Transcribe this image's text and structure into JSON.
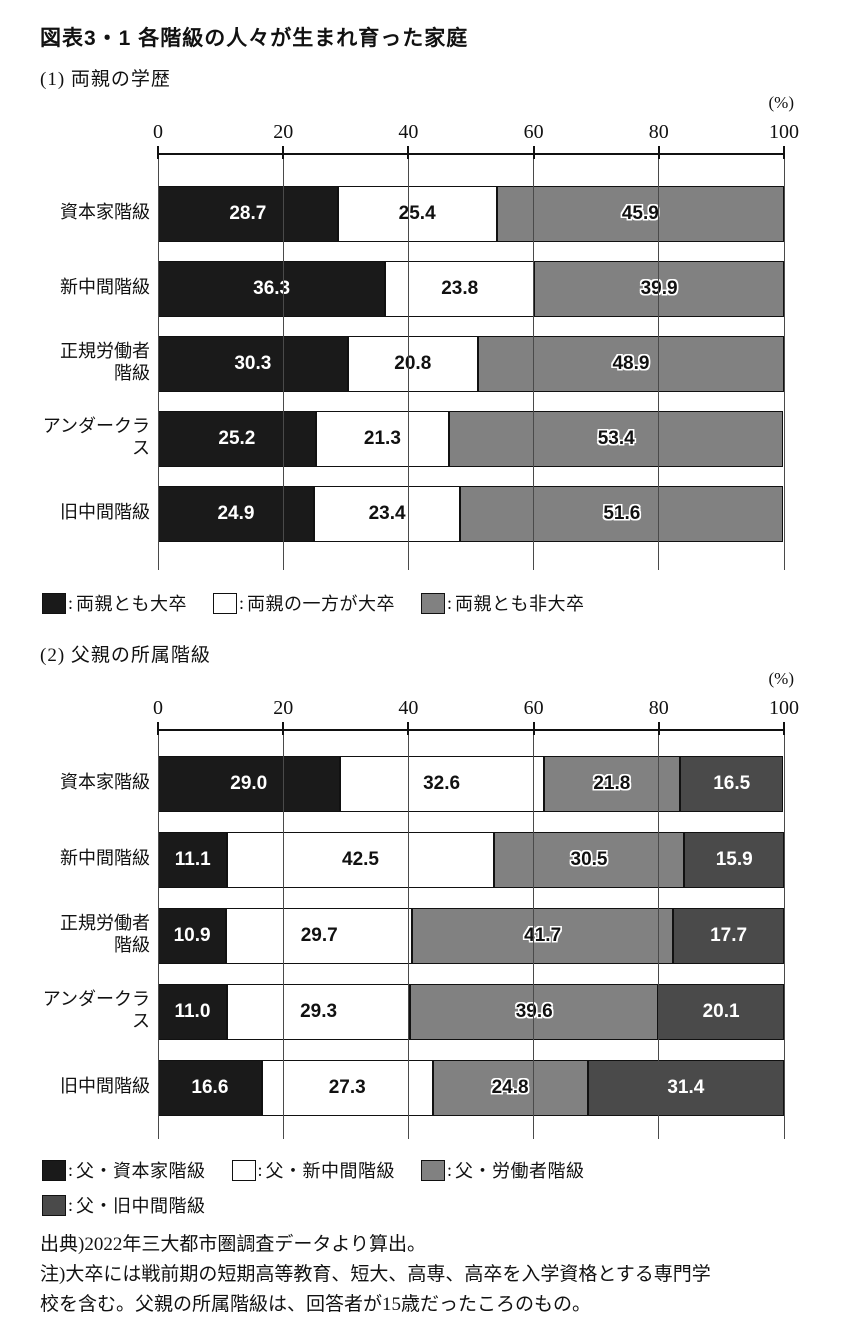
{
  "page": {
    "title": "図表3・1 各階級の人々が生まれ育った家庭",
    "source_note": "出典)2022年三大都市圏調査データより算出。",
    "note_line1": "注)大卒には戦前期の短期高等教育、短大、高専、高卒を入学資格とする専門学",
    "note_line2": "校を含む。父親の所属階級は、回答者が15歳だったころのもの。"
  },
  "ui": {
    "legend_colon": ":"
  },
  "colors": {
    "black_series": "#1a1a1a",
    "white_series": "#ffffff",
    "gray_series": "#818181",
    "dark_gray_series": "#4a4a4a",
    "axis": "#111111",
    "gridline": "#4a4a4a"
  },
  "chart_data": [
    {
      "type": "bar",
      "orientation": "horizontal",
      "stacked": true,
      "title": "(1) 両親の学歴",
      "unit_label": "(%)",
      "xlim": [
        0,
        100
      ],
      "axis_ticks": [
        "0",
        "20",
        "40",
        "60",
        "80",
        "100"
      ],
      "grid": true,
      "legend_position": "bottom",
      "categories": [
        "資本家階級",
        "新中間階級",
        "正規労働者\n階級",
        "アンダークラス",
        "旧中間階級"
      ],
      "series": [
        {
          "name": "両親とも大卒",
          "color": "#1a1a1a",
          "value_style": "white",
          "values": [
            "28.7",
            "36.3",
            "30.3",
            "25.2",
            "24.9"
          ]
        },
        {
          "name": "両親の一方が大卒",
          "color": "#ffffff",
          "value_style": "black",
          "values": [
            "25.4",
            "23.8",
            "20.8",
            "21.3",
            "23.4"
          ]
        },
        {
          "name": "両親とも非大卒",
          "color": "#818181",
          "value_style": "outline",
          "values": [
            "45.9",
            "39.9",
            "48.9",
            "53.4",
            "51.6"
          ]
        }
      ]
    },
    {
      "type": "bar",
      "orientation": "horizontal",
      "stacked": true,
      "title": "(2) 父親の所属階級",
      "unit_label": "(%)",
      "xlim": [
        0,
        100
      ],
      "axis_ticks": [
        "0",
        "20",
        "40",
        "60",
        "80",
        "100"
      ],
      "grid": true,
      "legend_position": "bottom",
      "categories": [
        "資本家階級",
        "新中間階級",
        "正規労働者\n階級",
        "アンダークラス",
        "旧中間階級"
      ],
      "series": [
        {
          "name": "父・資本家階級",
          "color": "#1a1a1a",
          "value_style": "white",
          "values": [
            "29.0",
            "11.1",
            "10.9",
            "11.0",
            "16.6"
          ]
        },
        {
          "name": "父・新中間階級",
          "color": "#ffffff",
          "value_style": "black",
          "values": [
            "32.6",
            "42.5",
            "29.7",
            "29.3",
            "27.3"
          ]
        },
        {
          "name": "父・労働者階級",
          "color": "#818181",
          "value_style": "outline",
          "values": [
            "21.8",
            "30.5",
            "41.7",
            "39.6",
            "24.8"
          ]
        },
        {
          "name": "父・旧中間階級",
          "color": "#4a4a4a",
          "value_style": "white",
          "values": [
            "16.5",
            "15.9",
            "17.7",
            "20.1",
            "31.4"
          ]
        }
      ]
    }
  ]
}
